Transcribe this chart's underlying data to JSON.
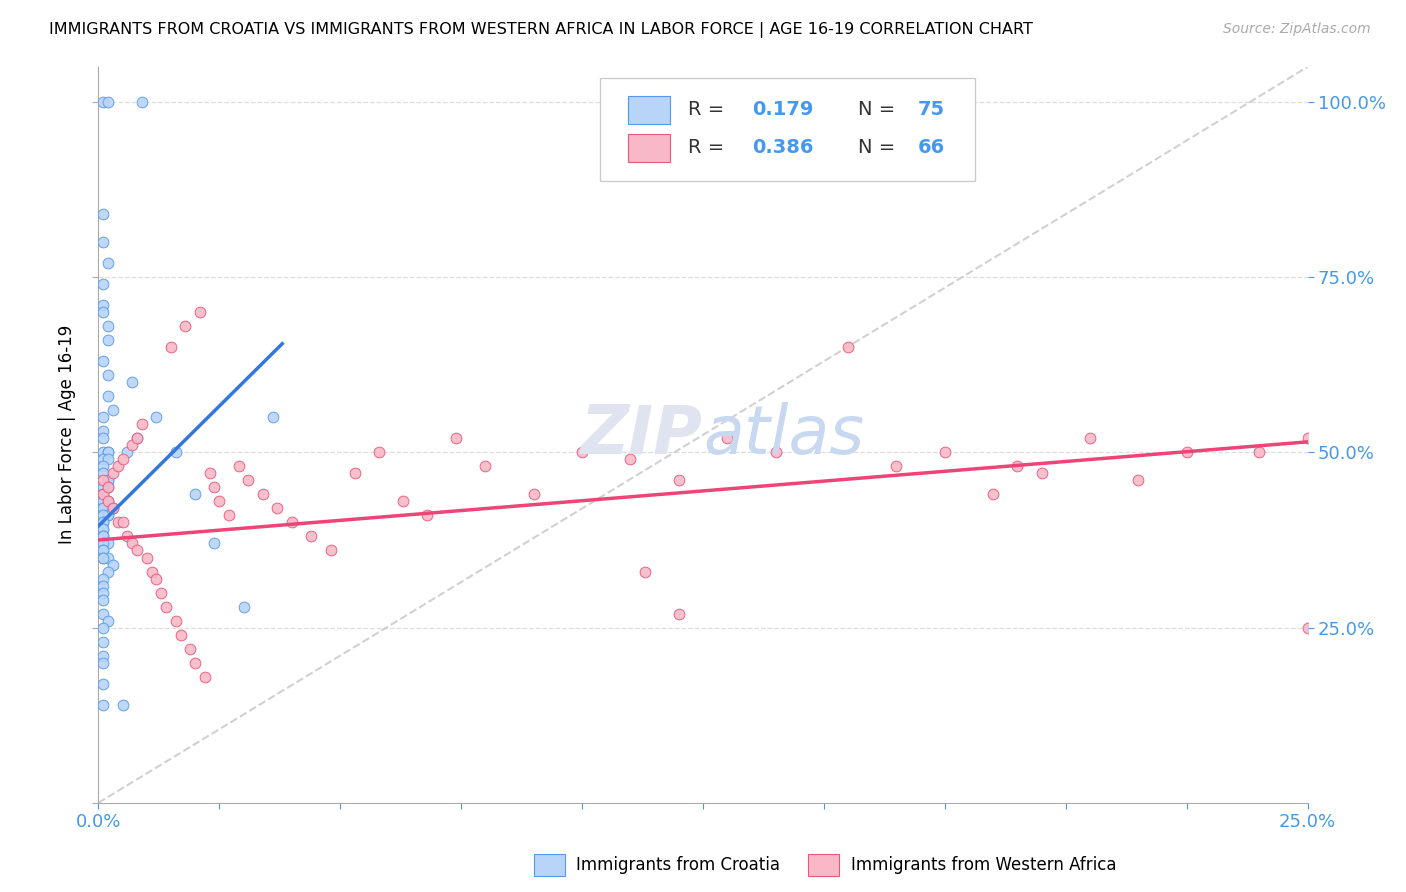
{
  "title": "IMMIGRANTS FROM CROATIA VS IMMIGRANTS FROM WESTERN AFRICA IN LABOR FORCE | AGE 16-19 CORRELATION CHART",
  "source": "Source: ZipAtlas.com",
  "ylabel": "In Labor Force | Age 16-19",
  "xlim": [
    0.0,
    0.25
  ],
  "ylim": [
    0.0,
    1.05
  ],
  "croatia_R": 0.179,
  "croatia_N": 75,
  "western_africa_R": 0.386,
  "western_africa_N": 66,
  "croatia_color": "#b8d4f8",
  "western_africa_color": "#f8b8c8",
  "croatia_edge_color": "#5599ee",
  "western_africa_edge_color": "#ee5577",
  "croatia_line_color": "#3377dd",
  "western_africa_line_color": "#ee4477",
  "diag_line_color": "#cccccc",
  "tick_color": "#4499ee",
  "grid_color": "#dddddd",
  "watermark_color": "#e0e4f0",
  "background_color": "#ffffff",
  "croatia_trend": [
    0.0,
    0.038,
    0.395,
    0.655
  ],
  "western_africa_trend": [
    0.0,
    0.25,
    0.375,
    0.515
  ],
  "croatia_x": [
    0.001,
    0.002,
    0.009,
    0.001,
    0.001,
    0.002,
    0.001,
    0.001,
    0.001,
    0.002,
    0.002,
    0.001,
    0.002,
    0.002,
    0.003,
    0.001,
    0.001,
    0.001,
    0.001,
    0.002,
    0.002,
    0.001,
    0.002,
    0.001,
    0.001,
    0.002,
    0.002,
    0.002,
    0.001,
    0.001,
    0.002,
    0.001,
    0.001,
    0.001,
    0.003,
    0.002,
    0.002,
    0.001,
    0.001,
    0.001,
    0.001,
    0.001,
    0.001,
    0.001,
    0.002,
    0.001,
    0.001,
    0.001,
    0.001,
    0.002,
    0.001,
    0.003,
    0.002,
    0.001,
    0.001,
    0.001,
    0.001,
    0.001,
    0.002,
    0.001,
    0.001,
    0.001,
    0.001,
    0.001,
    0.001,
    0.005,
    0.006,
    0.007,
    0.008,
    0.012,
    0.016,
    0.02,
    0.024,
    0.03,
    0.036
  ],
  "croatia_y": [
    1.0,
    1.0,
    1.0,
    0.84,
    0.8,
    0.77,
    0.74,
    0.71,
    0.7,
    0.68,
    0.66,
    0.63,
    0.61,
    0.58,
    0.56,
    0.55,
    0.53,
    0.52,
    0.5,
    0.5,
    0.5,
    0.49,
    0.49,
    0.48,
    0.47,
    0.46,
    0.46,
    0.45,
    0.45,
    0.44,
    0.43,
    0.43,
    0.42,
    0.42,
    0.42,
    0.41,
    0.41,
    0.41,
    0.4,
    0.4,
    0.39,
    0.39,
    0.38,
    0.38,
    0.37,
    0.37,
    0.36,
    0.36,
    0.35,
    0.35,
    0.35,
    0.34,
    0.33,
    0.32,
    0.31,
    0.3,
    0.29,
    0.27,
    0.26,
    0.25,
    0.23,
    0.21,
    0.2,
    0.17,
    0.14,
    0.14,
    0.5,
    0.6,
    0.52,
    0.55,
    0.5,
    0.44,
    0.37,
    0.28,
    0.55
  ],
  "western_africa_x": [
    0.001,
    0.001,
    0.002,
    0.002,
    0.003,
    0.003,
    0.004,
    0.004,
    0.005,
    0.005,
    0.006,
    0.007,
    0.007,
    0.008,
    0.008,
    0.009,
    0.01,
    0.011,
    0.012,
    0.013,
    0.014,
    0.015,
    0.016,
    0.017,
    0.018,
    0.019,
    0.02,
    0.021,
    0.022,
    0.023,
    0.024,
    0.025,
    0.027,
    0.029,
    0.031,
    0.034,
    0.037,
    0.04,
    0.044,
    0.048,
    0.053,
    0.058,
    0.063,
    0.068,
    0.074,
    0.08,
    0.09,
    0.1,
    0.11,
    0.12,
    0.13,
    0.14,
    0.155,
    0.165,
    0.175,
    0.185,
    0.195,
    0.205,
    0.215,
    0.225,
    0.24,
    0.25,
    0.25,
    0.19,
    0.12,
    0.113
  ],
  "western_africa_y": [
    0.44,
    0.46,
    0.43,
    0.45,
    0.42,
    0.47,
    0.4,
    0.48,
    0.4,
    0.49,
    0.38,
    0.51,
    0.37,
    0.52,
    0.36,
    0.54,
    0.35,
    0.33,
    0.32,
    0.3,
    0.28,
    0.65,
    0.26,
    0.24,
    0.68,
    0.22,
    0.2,
    0.7,
    0.18,
    0.47,
    0.45,
    0.43,
    0.41,
    0.48,
    0.46,
    0.44,
    0.42,
    0.4,
    0.38,
    0.36,
    0.47,
    0.5,
    0.43,
    0.41,
    0.52,
    0.48,
    0.44,
    0.5,
    0.49,
    0.46,
    0.52,
    0.5,
    0.65,
    0.48,
    0.5,
    0.44,
    0.47,
    0.52,
    0.46,
    0.5,
    0.5,
    0.52,
    0.25,
    0.48,
    0.27,
    0.33
  ]
}
